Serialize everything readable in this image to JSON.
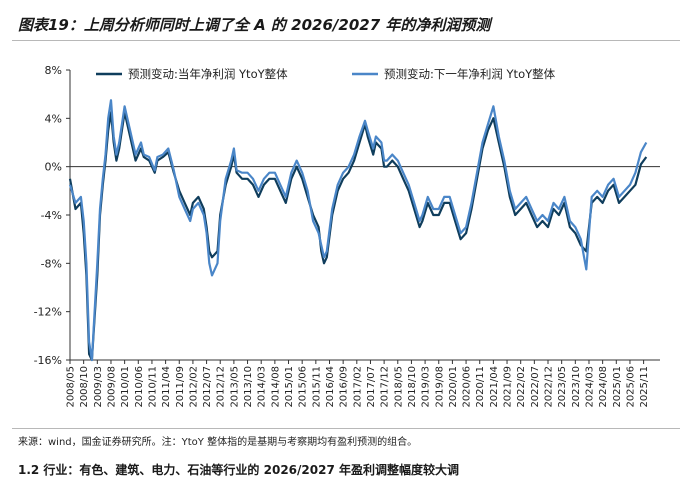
{
  "title": "图表19：上周分析师同时上调了全 A 的 2026/2027 年的净利润预测",
  "source": "来源：wind，国金证券研究所。注：YtoY 整体指的是基期与考察期均有盈利预测的组合。",
  "next_line": "1.2 行业：有色、建筑、电力、石油等行业的 2026/2027 年盈利调整幅度较大调",
  "chart_data": {
    "type": "line",
    "title": "",
    "xlabel": "",
    "ylabel": "",
    "ylim": [
      -16,
      8
    ],
    "yticks": [
      8,
      4,
      0,
      -4,
      -8,
      -12,
      -16
    ],
    "ytick_labels": [
      "8%",
      "4%",
      "0%",
      "-4%",
      "-8%",
      "-12%",
      "-16%"
    ],
    "y_unit": "%",
    "xlim": [
      "2008-05",
      "2026-05"
    ],
    "xtick_labels": [
      "2008/05",
      "2008/10",
      "2009/03",
      "2009/08",
      "2010/01",
      "2010/06",
      "2010/11",
      "2011/04",
      "2011/09",
      "2012/02",
      "2012/07",
      "2012/12",
      "2013/05",
      "2013/10",
      "2014/03",
      "2014/08",
      "2015/01",
      "2015/06",
      "2015/11",
      "2016/04",
      "2016/09",
      "2017/02",
      "2017/07",
      "2017/12",
      "2018/05",
      "2018/10",
      "2019/03",
      "2019/08",
      "2020/01",
      "2020/06",
      "2020/11",
      "2021/04",
      "2021/09",
      "2022/02",
      "2022/07",
      "2022/12",
      "2023/05",
      "2023/10",
      "2024/03",
      "2024/08",
      "2025/01",
      "2025/06",
      "2025/11"
    ],
    "legend": "top",
    "grid": false,
    "series": [
      {
        "name": "预测变动:当年净利润 YtoY整体",
        "color": "#0f3d5c",
        "points": [
          [
            "2008-05",
            -1.0
          ],
          [
            "2008-07",
            -3.5
          ],
          [
            "2008-09",
            -3.0
          ],
          [
            "2008-10",
            -5.5
          ],
          [
            "2008-11",
            -9.0
          ],
          [
            "2008-12",
            -15.5
          ],
          [
            "2009-01",
            -16.0
          ],
          [
            "2009-03",
            -9.0
          ],
          [
            "2009-04",
            -4.0
          ],
          [
            "2009-05",
            -1.5
          ],
          [
            "2009-06",
            0.5
          ],
          [
            "2009-07",
            3.0
          ],
          [
            "2009-08",
            4.5
          ],
          [
            "2009-09",
            2.0
          ],
          [
            "2009-10",
            0.5
          ],
          [
            "2009-11",
            1.5
          ],
          [
            "2010-01",
            4.5
          ],
          [
            "2010-03",
            2.5
          ],
          [
            "2010-05",
            0.5
          ],
          [
            "2010-07",
            1.5
          ],
          [
            "2010-08",
            0.8
          ],
          [
            "2010-10",
            0.5
          ],
          [
            "2010-12",
            -0.5
          ],
          [
            "2011-01",
            0.5
          ],
          [
            "2011-03",
            0.8
          ],
          [
            "2011-05",
            1.2
          ],
          [
            "2011-07",
            -0.5
          ],
          [
            "2011-09",
            -2.0
          ],
          [
            "2011-11",
            -3.0
          ],
          [
            "2012-01",
            -4.0
          ],
          [
            "2012-02",
            -3.0
          ],
          [
            "2012-04",
            -2.5
          ],
          [
            "2012-06",
            -3.5
          ],
          [
            "2012-07",
            -5.0
          ],
          [
            "2012-08",
            -7.0
          ],
          [
            "2012-09",
            -7.5
          ],
          [
            "2012-11",
            -7.0
          ],
          [
            "2012-12",
            -4.0
          ],
          [
            "2013-02",
            -1.5
          ],
          [
            "2013-04",
            0.0
          ],
          [
            "2013-05",
            1.0
          ],
          [
            "2013-06",
            -0.5
          ],
          [
            "2013-08",
            -1.0
          ],
          [
            "2013-10",
            -1.0
          ],
          [
            "2013-12",
            -1.5
          ],
          [
            "2014-02",
            -2.5
          ],
          [
            "2014-04",
            -1.5
          ],
          [
            "2014-06",
            -1.0
          ],
          [
            "2014-08",
            -1.0
          ],
          [
            "2014-10",
            -2.0
          ],
          [
            "2014-12",
            -3.0
          ],
          [
            "2015-02",
            -1.0
          ],
          [
            "2015-04",
            0.0
          ],
          [
            "2015-06",
            -1.0
          ],
          [
            "2015-08",
            -2.5
          ],
          [
            "2015-10",
            -4.0
          ],
          [
            "2015-12",
            -5.0
          ],
          [
            "2016-01",
            -7.0
          ],
          [
            "2016-02",
            -8.0
          ],
          [
            "2016-03",
            -7.5
          ],
          [
            "2016-05",
            -4.0
          ],
          [
            "2016-07",
            -2.0
          ],
          [
            "2016-09",
            -1.0
          ],
          [
            "2016-11",
            -0.5
          ],
          [
            "2017-01",
            0.5
          ],
          [
            "2017-03",
            2.0
          ],
          [
            "2017-05",
            3.5
          ],
          [
            "2017-06",
            2.5
          ],
          [
            "2017-08",
            1.0
          ],
          [
            "2017-09",
            2.0
          ],
          [
            "2017-11",
            1.5
          ],
          [
            "2017-12",
            0.0
          ],
          [
            "2018-01",
            0.0
          ],
          [
            "2018-03",
            0.5
          ],
          [
            "2018-05",
            0.0
          ],
          [
            "2018-07",
            -1.0
          ],
          [
            "2018-09",
            -2.0
          ],
          [
            "2018-11",
            -3.5
          ],
          [
            "2019-01",
            -5.0
          ],
          [
            "2019-02",
            -4.5
          ],
          [
            "2019-04",
            -3.0
          ],
          [
            "2019-06",
            -4.0
          ],
          [
            "2019-08",
            -4.0
          ],
          [
            "2019-10",
            -3.0
          ],
          [
            "2019-12",
            -3.0
          ],
          [
            "2020-02",
            -4.5
          ],
          [
            "2020-04",
            -6.0
          ],
          [
            "2020-06",
            -5.5
          ],
          [
            "2020-08",
            -3.5
          ],
          [
            "2020-10",
            -1.0
          ],
          [
            "2020-12",
            1.5
          ],
          [
            "2021-02",
            3.0
          ],
          [
            "2021-04",
            4.0
          ],
          [
            "2021-06",
            2.0
          ],
          [
            "2021-08",
            0.0
          ],
          [
            "2021-10",
            -2.5
          ],
          [
            "2021-12",
            -4.0
          ],
          [
            "2022-02",
            -3.5
          ],
          [
            "2022-04",
            -3.0
          ],
          [
            "2022-06",
            -4.0
          ],
          [
            "2022-08",
            -5.0
          ],
          [
            "2022-10",
            -4.5
          ],
          [
            "2022-12",
            -5.0
          ],
          [
            "2023-02",
            -3.5
          ],
          [
            "2023-04",
            -4.0
          ],
          [
            "2023-06",
            -3.0
          ],
          [
            "2023-08",
            -5.0
          ],
          [
            "2023-10",
            -5.5
          ],
          [
            "2023-12",
            -6.5
          ],
          [
            "2024-02",
            -7.0
          ],
          [
            "2024-04",
            -3.0
          ],
          [
            "2024-06",
            -2.5
          ],
          [
            "2024-08",
            -3.0
          ],
          [
            "2024-10",
            -2.0
          ],
          [
            "2024-12",
            -1.5
          ],
          [
            "2025-02",
            -3.0
          ],
          [
            "2025-04",
            -2.5
          ],
          [
            "2025-06",
            -2.0
          ],
          [
            "2025-08",
            -1.5
          ],
          [
            "2025-10",
            0.2
          ],
          [
            "2025-12",
            0.8
          ]
        ]
      },
      {
        "name": "预测变动:下一年净利润 YtoY整体",
        "color": "#4a86c8",
        "points": [
          [
            "2008-05",
            -1.5
          ],
          [
            "2008-07",
            -3.0
          ],
          [
            "2008-09",
            -2.5
          ],
          [
            "2008-10",
            -4.5
          ],
          [
            "2008-11",
            -8.0
          ],
          [
            "2008-12",
            -14.5
          ],
          [
            "2009-01",
            -16.0
          ],
          [
            "2009-03",
            -8.0
          ],
          [
            "2009-04",
            -3.5
          ],
          [
            "2009-05",
            -1.0
          ],
          [
            "2009-06",
            1.0
          ],
          [
            "2009-07",
            4.0
          ],
          [
            "2009-08",
            5.5
          ],
          [
            "2009-09",
            2.5
          ],
          [
            "2009-10",
            1.0
          ],
          [
            "2009-11",
            2.0
          ],
          [
            "2010-01",
            5.0
          ],
          [
            "2010-03",
            3.0
          ],
          [
            "2010-05",
            1.0
          ],
          [
            "2010-07",
            2.0
          ],
          [
            "2010-08",
            1.0
          ],
          [
            "2010-10",
            0.8
          ],
          [
            "2010-12",
            -0.3
          ],
          [
            "2011-01",
            0.8
          ],
          [
            "2011-03",
            1.0
          ],
          [
            "2011-05",
            1.5
          ],
          [
            "2011-07",
            -0.3
          ],
          [
            "2011-09",
            -2.5
          ],
          [
            "2011-11",
            -3.5
          ],
          [
            "2012-01",
            -4.5
          ],
          [
            "2012-02",
            -3.5
          ],
          [
            "2012-04",
            -3.0
          ],
          [
            "2012-06",
            -4.0
          ],
          [
            "2012-07",
            -5.5
          ],
          [
            "2012-08",
            -8.0
          ],
          [
            "2012-09",
            -9.0
          ],
          [
            "2012-11",
            -8.0
          ],
          [
            "2012-12",
            -4.5
          ],
          [
            "2013-02",
            -1.0
          ],
          [
            "2013-04",
            0.5
          ],
          [
            "2013-05",
            1.5
          ],
          [
            "2013-06",
            -0.3
          ],
          [
            "2013-08",
            -0.5
          ],
          [
            "2013-10",
            -0.5
          ],
          [
            "2013-12",
            -1.0
          ],
          [
            "2014-02",
            -2.0
          ],
          [
            "2014-04",
            -1.0
          ],
          [
            "2014-06",
            -0.5
          ],
          [
            "2014-08",
            -0.5
          ],
          [
            "2014-10",
            -1.5
          ],
          [
            "2014-12",
            -2.5
          ],
          [
            "2015-02",
            -0.5
          ],
          [
            "2015-04",
            0.5
          ],
          [
            "2015-06",
            -0.5
          ],
          [
            "2015-08",
            -2.0
          ],
          [
            "2015-10",
            -4.5
          ],
          [
            "2015-12",
            -5.5
          ],
          [
            "2016-01",
            -6.5
          ],
          [
            "2016-02",
            -7.5
          ],
          [
            "2016-03",
            -7.0
          ],
          [
            "2016-05",
            -3.5
          ],
          [
            "2016-07",
            -1.5
          ],
          [
            "2016-09",
            -0.5
          ],
          [
            "2016-11",
            0.0
          ],
          [
            "2017-01",
            1.0
          ],
          [
            "2017-03",
            2.5
          ],
          [
            "2017-05",
            3.8
          ],
          [
            "2017-06",
            3.0
          ],
          [
            "2017-08",
            1.5
          ],
          [
            "2017-09",
            2.5
          ],
          [
            "2017-11",
            2.0
          ],
          [
            "2017-12",
            0.5
          ],
          [
            "2018-01",
            0.5
          ],
          [
            "2018-03",
            1.0
          ],
          [
            "2018-05",
            0.5
          ],
          [
            "2018-07",
            -0.5
          ],
          [
            "2018-09",
            -1.5
          ],
          [
            "2018-11",
            -3.0
          ],
          [
            "2019-01",
            -4.5
          ],
          [
            "2019-02",
            -4.0
          ],
          [
            "2019-04",
            -2.5
          ],
          [
            "2019-06",
            -3.5
          ],
          [
            "2019-08",
            -3.5
          ],
          [
            "2019-10",
            -2.5
          ],
          [
            "2019-12",
            -2.5
          ],
          [
            "2020-02",
            -4.0
          ],
          [
            "2020-04",
            -5.5
          ],
          [
            "2020-06",
            -5.0
          ],
          [
            "2020-08",
            -3.0
          ],
          [
            "2020-10",
            -0.5
          ],
          [
            "2020-12",
            2.0
          ],
          [
            "2021-02",
            3.5
          ],
          [
            "2021-04",
            5.0
          ],
          [
            "2021-06",
            2.5
          ],
          [
            "2021-08",
            0.5
          ],
          [
            "2021-10",
            -2.0
          ],
          [
            "2021-12",
            -3.5
          ],
          [
            "2022-02",
            -3.0
          ],
          [
            "2022-04",
            -2.5
          ],
          [
            "2022-06",
            -3.5
          ],
          [
            "2022-08",
            -4.5
          ],
          [
            "2022-10",
            -4.0
          ],
          [
            "2022-12",
            -4.5
          ],
          [
            "2023-02",
            -3.0
          ],
          [
            "2023-04",
            -3.5
          ],
          [
            "2023-06",
            -2.5
          ],
          [
            "2023-08",
            -4.5
          ],
          [
            "2023-10",
            -5.0
          ],
          [
            "2023-12",
            -6.0
          ],
          [
            "2024-02",
            -8.5
          ],
          [
            "2024-04",
            -2.5
          ],
          [
            "2024-06",
            -2.0
          ],
          [
            "2024-08",
            -2.5
          ],
          [
            "2024-10",
            -1.5
          ],
          [
            "2024-12",
            -1.0
          ],
          [
            "2025-02",
            -2.5
          ],
          [
            "2025-04",
            -2.0
          ],
          [
            "2025-06",
            -1.5
          ],
          [
            "2025-08",
            -0.5
          ],
          [
            "2025-10",
            1.2
          ],
          [
            "2025-12",
            2.0
          ]
        ]
      }
    ]
  }
}
